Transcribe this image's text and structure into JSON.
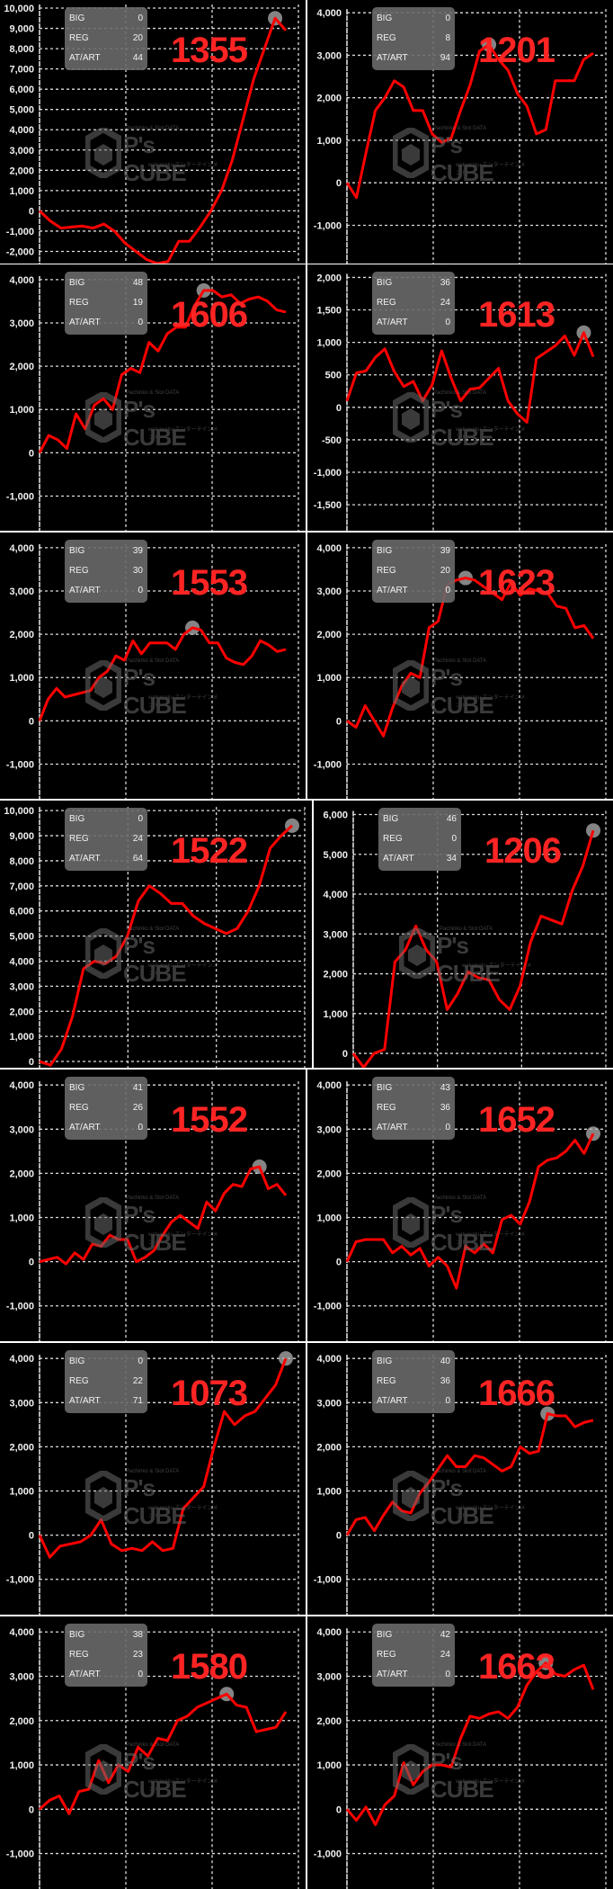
{
  "watermark": {
    "top": "Pachinko & Slot DATA",
    "main": "P's CUBE",
    "sub": "wakuwaku エンターテインメント"
  },
  "stat_labels": [
    "BIG",
    "REG",
    "AT/ART"
  ],
  "colors": {
    "line": "#ff0000",
    "number": "#ff2424",
    "background": "#000000",
    "grid": "#dddddd",
    "marker": "#b0b0b0"
  },
  "charts": [
    {
      "number": "1355",
      "big": "0",
      "reg": "20",
      "at_art": "44"
    },
    {
      "number": "1201",
      "big": "0",
      "reg": "8",
      "at_art": "94"
    },
    {
      "number": "1606",
      "big": "48",
      "reg": "19",
      "at_art": "0"
    },
    {
      "number": "1613",
      "big": "36",
      "reg": "24",
      "at_art": "0"
    },
    {
      "number": "1553",
      "big": "39",
      "reg": "30",
      "at_art": "0"
    },
    {
      "number": "1623",
      "big": "39",
      "reg": "20",
      "at_art": "0"
    },
    {
      "number": "1522",
      "big": "0",
      "reg": "24",
      "at_art": "64"
    },
    {
      "number": "1206",
      "big": "46",
      "reg": "0",
      "at_art": "34"
    },
    {
      "number": "1552",
      "big": "41",
      "reg": "26",
      "at_art": "0"
    },
    {
      "number": "1652",
      "big": "43",
      "reg": "36",
      "at_art": "0"
    },
    {
      "number": "1073",
      "big": "0",
      "reg": "22",
      "at_art": "71"
    },
    {
      "number": "1666",
      "big": "40",
      "reg": "36",
      "at_art": "0"
    },
    {
      "number": "1580",
      "big": "38",
      "reg": "23",
      "at_art": "0"
    },
    {
      "number": "1663",
      "big": "42",
      "reg": "24",
      "at_art": "0"
    }
  ],
  "chart_data": [
    {
      "type": "line",
      "title": "1355",
      "ylim": [
        -2600,
        10400
      ],
      "yticks": [
        "10,000",
        "9,000",
        "8,000",
        "7,000",
        "6,000",
        "5,000",
        "4,000",
        "3,000",
        "2,000",
        "1,000",
        "0",
        "-1,000",
        "-2,000"
      ],
      "ytick_values": [
        10000,
        9000,
        8000,
        7000,
        6000,
        5000,
        4000,
        3000,
        2000,
        1000,
        0,
        -1000,
        -2000
      ],
      "grid": true,
      "values": [
        0,
        -500,
        -850,
        -800,
        -750,
        -850,
        -650,
        -1000,
        -1600,
        -2000,
        -2400,
        -2600,
        -2500,
        -1500,
        -1500,
        -800,
        0,
        1000,
        2500,
        4500,
        6500,
        8000,
        9500,
        8900
      ]
    },
    {
      "type": "line",
      "title": "1201",
      "ylim": [
        -1900,
        4300
      ],
      "yticks": [
        "4,000",
        "3,000",
        "2,000",
        "1,000",
        "0",
        "-1,000"
      ],
      "ytick_values": [
        4000,
        3000,
        2000,
        1000,
        0,
        -1000
      ],
      "grid": true,
      "values": [
        0,
        -350,
        700,
        1700,
        2000,
        2400,
        2250,
        1700,
        1700,
        1150,
        950,
        1050,
        1700,
        2300,
        3100,
        3250,
        2900,
        2650,
        2100,
        1800,
        1150,
        1250,
        2400,
        2400,
        2400,
        2900,
        3050
      ]
    },
    {
      "type": "line",
      "title": "1606",
      "ylim": [
        -1800,
        4350
      ],
      "yticks": [
        "4,000",
        "3,000",
        "2,000",
        "1,000",
        "0",
        "-1,000"
      ],
      "ytick_values": [
        4000,
        3000,
        2000,
        1000,
        0,
        -1000
      ],
      "grid": true,
      "values": [
        0,
        400,
        300,
        100,
        900,
        550,
        1100,
        1250,
        1000,
        1800,
        1950,
        1850,
        2550,
        2350,
        2750,
        2900,
        2900,
        3400,
        3750,
        3750,
        3600,
        3650,
        3450,
        3550,
        3600,
        3500,
        3300,
        3250
      ]
    },
    {
      "type": "line",
      "title": "1613",
      "ylim": [
        -1900,
        2200
      ],
      "yticks": [
        "2,000",
        "1,500",
        "1,000",
        "500",
        "0",
        "-500",
        "-1,000",
        "-1,500"
      ],
      "ytick_values": [
        2000,
        1500,
        1000,
        500,
        0,
        -500,
        -1000,
        -1500
      ],
      "grid": true,
      "values": [
        100,
        530,
        560,
        770,
        900,
        550,
        320,
        400,
        100,
        350,
        870,
        450,
        100,
        280,
        300,
        450,
        600,
        100,
        -100,
        -230,
        750,
        850,
        950,
        1100,
        800,
        1150,
        780
      ]
    },
    {
      "type": "line",
      "title": "1553",
      "ylim": [
        -1800,
        4350
      ],
      "yticks": [
        "4,000",
        "3,000",
        "2,000",
        "1,000",
        "0",
        "-1,000"
      ],
      "ytick_values": [
        4000,
        3000,
        2000,
        1000,
        0,
        -1000
      ],
      "grid": true,
      "values": [
        0,
        500,
        750,
        550,
        600,
        650,
        700,
        1000,
        1150,
        1500,
        1400,
        1850,
        1550,
        1800,
        1800,
        1800,
        1650,
        2000,
        2150,
        2100,
        1800,
        1800,
        1450,
        1350,
        1300,
        1500,
        1850,
        1750,
        1600,
        1650
      ]
    },
    {
      "type": "line",
      "title": "1623",
      "ylim": [
        -1800,
        4350
      ],
      "yticks": [
        "4,000",
        "3,000",
        "2,000",
        "1,000",
        "0",
        "-1,000"
      ],
      "ytick_values": [
        4000,
        3000,
        2000,
        1000,
        0,
        -1000
      ],
      "grid": true,
      "values": [
        0,
        -150,
        350,
        0,
        -350,
        300,
        800,
        1100,
        1000,
        2150,
        2300,
        3150,
        3250,
        3300,
        3250,
        3100,
        2950,
        2800,
        3200,
        2900,
        3050,
        3000,
        2950,
        2650,
        2600,
        2150,
        2200,
        1900
      ]
    },
    {
      "type": "line",
      "title": "1522",
      "ylim": [
        -250,
        10400
      ],
      "yticks": [
        "10,000",
        "9,000",
        "8,000",
        "7,000",
        "6,000",
        "5,000",
        "4,000",
        "3,000",
        "2,000",
        "1,000",
        "0"
      ],
      "ytick_values": [
        10000,
        9000,
        8000,
        7000,
        6000,
        5000,
        4000,
        3000,
        2000,
        1000,
        0
      ],
      "grid": true,
      "values": [
        0,
        -150,
        500,
        1800,
        3700,
        4000,
        3900,
        4200,
        5000,
        6400,
        7000,
        6700,
        6300,
        6300,
        5800,
        5500,
        5300,
        5100,
        5300,
        6000,
        7000,
        8500,
        9000,
        9400
      ]
    },
    {
      "type": "line",
      "title": "1206",
      "ylim": [
        -360,
        6350
      ],
      "yticks": [
        "6,000",
        "5,000",
        "4,000",
        "3,000",
        "2,000",
        "1,000",
        "0"
      ],
      "ytick_values": [
        6000,
        5000,
        4000,
        3000,
        2000,
        1000,
        0
      ],
      "grid": true,
      "values": [
        0,
        -350,
        0,
        100,
        2300,
        2600,
        3200,
        2600,
        2300,
        1100,
        1500,
        2050,
        1900,
        1850,
        1350,
        1100,
        1700,
        2800,
        3450,
        3350,
        3250,
        4100,
        4700,
        5600
      ]
    },
    {
      "type": "line",
      "title": "1552",
      "ylim": [
        -1800,
        4350
      ],
      "yticks": [
        "4,000",
        "3,000",
        "2,000",
        "1,000",
        "0",
        "-1,000"
      ],
      "ytick_values": [
        4000,
        3000,
        2000,
        1000,
        0,
        -1000
      ],
      "grid": true,
      "values": [
        0,
        50,
        100,
        -50,
        200,
        50,
        400,
        350,
        600,
        500,
        500,
        0,
        100,
        250,
        600,
        900,
        1050,
        900,
        750,
        1350,
        1150,
        1550,
        1750,
        1700,
        2100,
        2150,
        1650,
        1750,
        1500
      ]
    },
    {
      "type": "line",
      "title": "1652",
      "ylim": [
        -1800,
        4350
      ],
      "yticks": [
        "4,000",
        "3,000",
        "2,000",
        "1,000",
        "0",
        "-1,000"
      ],
      "ytick_values": [
        4000,
        3000,
        2000,
        1000,
        0,
        -1000
      ],
      "grid": true,
      "values": [
        0,
        450,
        500,
        500,
        500,
        200,
        350,
        150,
        300,
        -100,
        100,
        -100,
        -600,
        350,
        200,
        400,
        200,
        950,
        1050,
        850,
        1350,
        2150,
        2300,
        2350,
        2500,
        2750,
        2450,
        2900
      ]
    },
    {
      "type": "line",
      "title": "1073",
      "ylim": [
        -1800,
        4350
      ],
      "yticks": [
        "4,000",
        "3,000",
        "2,000",
        "1,000",
        "0",
        "-1,000"
      ],
      "ytick_values": [
        4000,
        3000,
        2000,
        1000,
        0,
        -1000
      ],
      "grid": true,
      "values": [
        0,
        -500,
        -250,
        -200,
        -150,
        0,
        350,
        -200,
        -350,
        -300,
        -350,
        -150,
        -350,
        -300,
        600,
        850,
        1100,
        2000,
        2800,
        2500,
        2700,
        2800,
        3100,
        3400,
        4000
      ]
    },
    {
      "type": "line",
      "title": "1666",
      "ylim": [
        -1800,
        4350
      ],
      "yticks": [
        "4,000",
        "3,000",
        "2,000",
        "1,000",
        "0",
        "-1,000"
      ],
      "ytick_values": [
        4000,
        3000,
        2000,
        1000,
        0,
        -1000
      ],
      "grid": true,
      "values": [
        0,
        350,
        400,
        100,
        450,
        750,
        550,
        500,
        950,
        1200,
        1500,
        1800,
        1550,
        1550,
        1800,
        1750,
        1600,
        1450,
        1550,
        2000,
        1850,
        1900,
        2750,
        2700,
        2700,
        2450,
        2550,
        2600
      ]
    },
    {
      "type": "line",
      "title": "1580",
      "ylim": [
        -1800,
        4350
      ],
      "yticks": [
        "4,000",
        "3,000",
        "2,000",
        "1,000",
        "0",
        "-1,000"
      ],
      "ytick_values": [
        4000,
        3000,
        2000,
        1000,
        0,
        -1000
      ],
      "grid": true,
      "values": [
        0,
        200,
        300,
        -100,
        400,
        450,
        1100,
        600,
        1000,
        850,
        1400,
        1200,
        1600,
        1550,
        2000,
        2100,
        2300,
        2400,
        2500,
        2600,
        2350,
        2300,
        1750,
        1800,
        1850,
        2200
      ]
    },
    {
      "type": "line",
      "title": "1663",
      "ylim": [
        -1800,
        4350
      ],
      "yticks": [
        "4,000",
        "3,000",
        "2,000",
        "1,000",
        "0",
        "-1,000"
      ],
      "ytick_values": [
        4000,
        3000,
        2000,
        1000,
        0,
        -1000
      ],
      "grid": true,
      "values": [
        0,
        -250,
        50,
        -350,
        100,
        300,
        1050,
        550,
        850,
        1000,
        1000,
        950,
        1600,
        2100,
        2050,
        2150,
        2200,
        2050,
        2300,
        2800,
        3100,
        3300,
        3050,
        3000,
        3150,
        3250,
        2700
      ]
    }
  ]
}
